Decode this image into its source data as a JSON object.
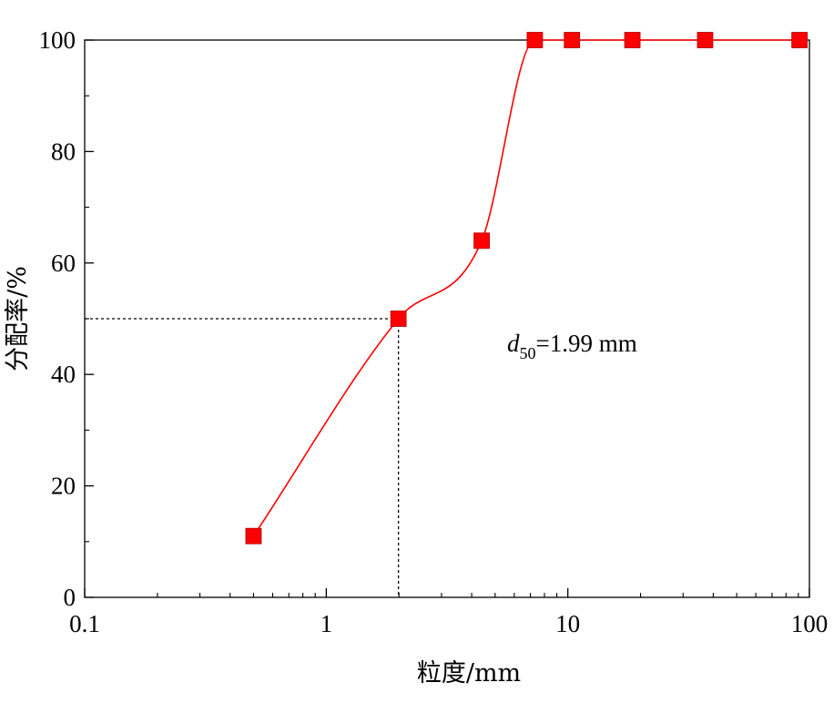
{
  "chart_data": {
    "type": "line",
    "xlabel": "粒度/mm",
    "ylabel": "分配率/%",
    "x_scale": "log",
    "xlim": [
      0.1,
      100
    ],
    "ylim": [
      0,
      100
    ],
    "x_ticks": [
      {
        "value": 0.1,
        "label": "0.1"
      },
      {
        "value": 1,
        "label": "1"
      },
      {
        "value": 10,
        "label": "10"
      },
      {
        "value": 100,
        "label": "100"
      }
    ],
    "y_ticks": [
      {
        "value": 0,
        "label": "0"
      },
      {
        "value": 20,
        "label": "20"
      },
      {
        "value": 40,
        "label": "40"
      },
      {
        "value": 60,
        "label": "60"
      },
      {
        "value": 80,
        "label": "80"
      },
      {
        "value": 100,
        "label": "100"
      }
    ],
    "grid": false,
    "series": [
      {
        "color": "#ff0000",
        "marker": "square",
        "x": [
          0.5,
          1.99,
          4.4,
          7.3,
          10.4,
          18.5,
          37,
          91
        ],
        "y": [
          11,
          50,
          64,
          100,
          100,
          100,
          100,
          100
        ]
      }
    ],
    "reference_point": {
      "x": 1.99,
      "y": 50
    },
    "annotation": {
      "italic": "d",
      "subscript": "50",
      "text": "=1.99 mm"
    }
  }
}
